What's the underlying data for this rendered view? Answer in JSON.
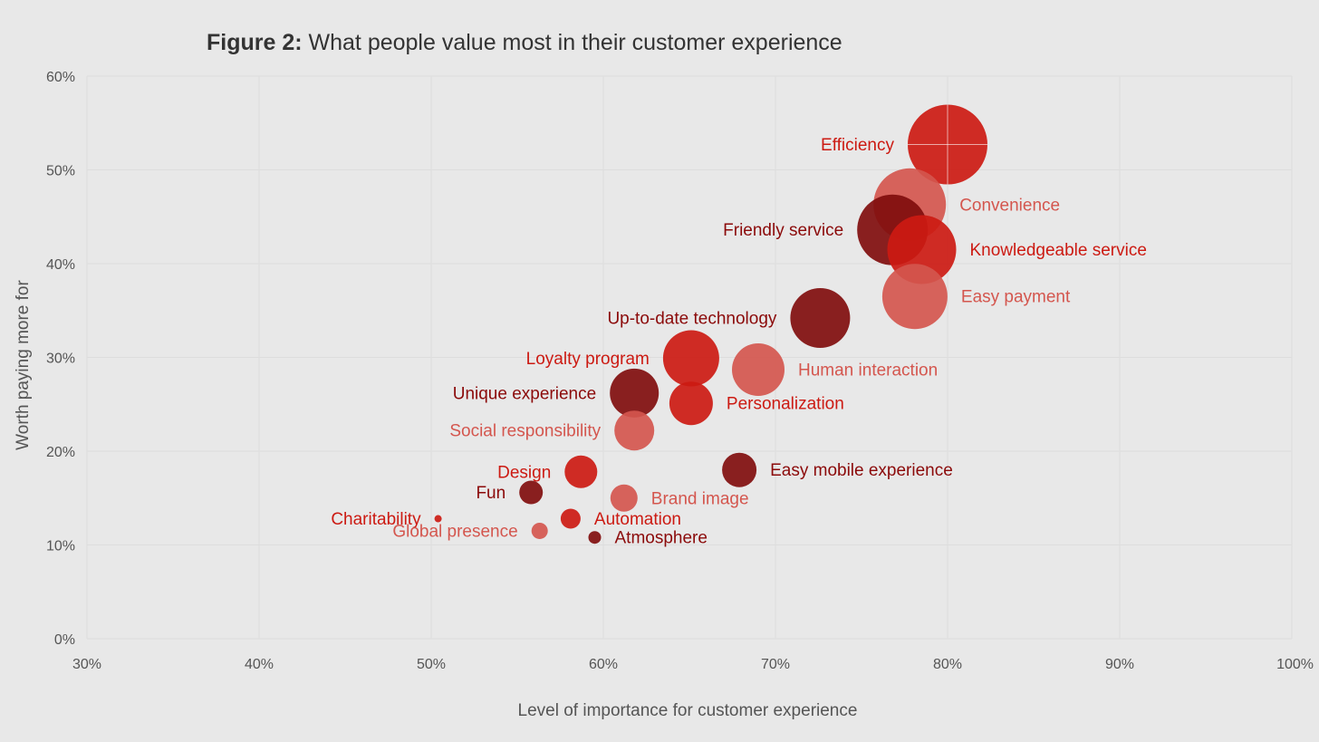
{
  "chart_data": {
    "type": "scatter",
    "title_bold": "Figure 2:",
    "title_rest": " What people value most in their customer experience",
    "xlabel": "Level of importance for customer experience",
    "ylabel": "Worth paying more for",
    "xlim": [
      30,
      100
    ],
    "ylim": [
      0,
      60
    ],
    "xticks": [
      30,
      40,
      50,
      60,
      70,
      80,
      90,
      100
    ],
    "yticks": [
      0,
      10,
      20,
      30,
      40,
      50,
      60
    ],
    "xtick_labels": [
      "30%",
      "40%",
      "50%",
      "60%",
      "70%",
      "80%",
      "90%",
      "100%"
    ],
    "ytick_labels": [
      "0%",
      "10%",
      "20%",
      "30%",
      "40%",
      "50%",
      "60%"
    ],
    "grid": true,
    "colors": {
      "bright": "#cc1a12",
      "dark": "#800d0d",
      "light": "#d4564e"
    },
    "label_colors": {
      "bright": "#cc1a12",
      "dark": "#8b0a0a",
      "light": "#d4564e"
    },
    "points": [
      {
        "label": "Efficiency",
        "x": 80.0,
        "y": 52.7,
        "size": 44,
        "group": "bright",
        "label_side": "left"
      },
      {
        "label": "Convenience",
        "x": 77.8,
        "y": 46.3,
        "size": 40,
        "group": "light",
        "label_side": "right"
      },
      {
        "label": "Friendly service",
        "x": 76.8,
        "y": 43.6,
        "size": 39,
        "group": "dark",
        "label_side": "left"
      },
      {
        "label": "Knowledgeable service",
        "x": 78.5,
        "y": 41.5,
        "size": 38,
        "group": "bright",
        "label_side": "right"
      },
      {
        "label": "Easy payment",
        "x": 78.1,
        "y": 36.5,
        "size": 36,
        "group": "light",
        "label_side": "right"
      },
      {
        "label": "Up-to-date technology",
        "x": 72.6,
        "y": 34.2,
        "size": 33,
        "group": "dark",
        "label_side": "left"
      },
      {
        "label": "Loyalty program",
        "x": 65.1,
        "y": 29.9,
        "size": 31,
        "group": "bright",
        "label_side": "left"
      },
      {
        "label": "Human interaction",
        "x": 69.0,
        "y": 28.7,
        "size": 29,
        "group": "light",
        "label_side": "right"
      },
      {
        "label": "Unique experience",
        "x": 61.8,
        "y": 26.2,
        "size": 27,
        "group": "dark",
        "label_side": "left"
      },
      {
        "label": "Personalization",
        "x": 65.1,
        "y": 25.1,
        "size": 24,
        "group": "bright",
        "label_side": "right"
      },
      {
        "label": "Social responsibility",
        "x": 61.8,
        "y": 22.2,
        "size": 22,
        "group": "light",
        "label_side": "left"
      },
      {
        "label": "Design",
        "x": 58.7,
        "y": 17.8,
        "size": 18,
        "group": "bright",
        "label_side": "left"
      },
      {
        "label": "Easy mobile experience",
        "x": 67.9,
        "y": 18.0,
        "size": 19,
        "group": "dark",
        "label_side": "right"
      },
      {
        "label": "Fun",
        "x": 55.8,
        "y": 15.6,
        "size": 13,
        "group": "dark",
        "label_side": "left"
      },
      {
        "label": "Brand image",
        "x": 61.2,
        "y": 15.0,
        "size": 15,
        "group": "light",
        "label_side": "right"
      },
      {
        "label": "Charitability",
        "x": 50.4,
        "y": 12.8,
        "size": 4,
        "group": "bright",
        "label_side": "left"
      },
      {
        "label": "Automation",
        "x": 58.1,
        "y": 12.8,
        "size": 11,
        "group": "bright",
        "label_side": "right"
      },
      {
        "label": "Global presence",
        "x": 56.3,
        "y": 11.5,
        "size": 9,
        "group": "light",
        "label_side": "left"
      },
      {
        "label": "Atmosphere",
        "x": 59.5,
        "y": 10.8,
        "size": 7,
        "group": "dark",
        "label_side": "right"
      }
    ]
  }
}
